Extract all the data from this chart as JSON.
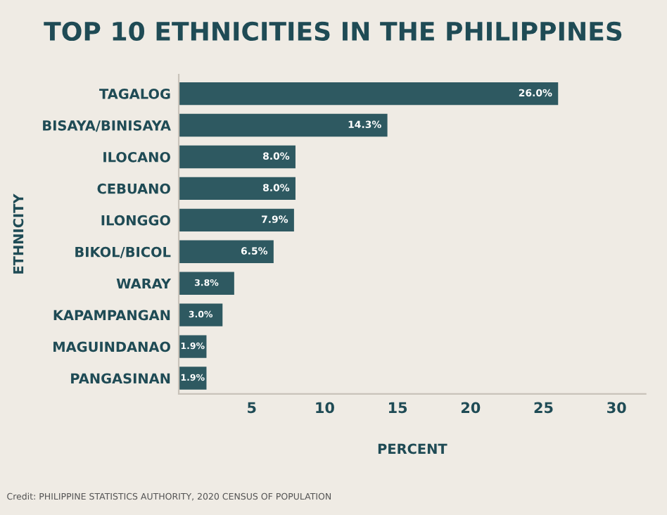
{
  "chart_data": {
    "type": "bar",
    "orientation": "horizontal",
    "title": "TOP 10 ETHNICITIES IN THE PHILIPPINES",
    "xlabel": "PERCENT",
    "ylabel": "ETHNICITY",
    "categories": [
      "TAGALOG",
      "BISAYA/BINISAYA",
      "ILOCANO",
      "CEBUANO",
      "ILONGGO",
      "BIKOL/BICOL",
      "WARAY",
      "KAPAMPANGAN",
      "MAGUINDANAO",
      "PANGASINAN"
    ],
    "values": [
      26.0,
      14.3,
      8.0,
      8.0,
      7.9,
      6.5,
      3.8,
      3.0,
      1.9,
      1.9
    ],
    "value_labels": [
      "26.0%",
      "14.3%",
      "8.0%",
      "8.0%",
      "7.9%",
      "6.5%",
      "3.8%",
      "3.0%",
      "1.9%",
      "1.9%"
    ],
    "color": "#2e5961",
    "xlim": [
      0,
      32
    ],
    "xticks": [
      5,
      10,
      15,
      20,
      25,
      30
    ],
    "grid": false,
    "legend": false,
    "annotations": [
      "Credit: PHILIPPINE STATISTICS AUTHORITY, 2020 CENSUS OF POPULATION"
    ]
  }
}
